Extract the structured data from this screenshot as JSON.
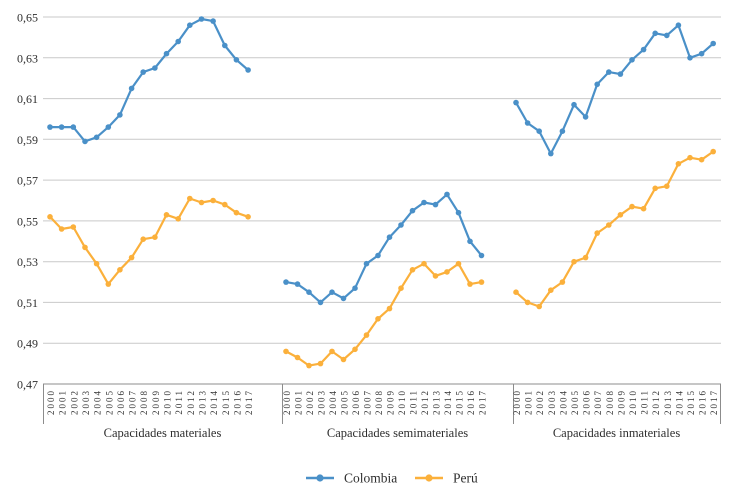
{
  "chart_data": {
    "type": "line",
    "title": "",
    "y_axis": {
      "min": 0.47,
      "max": 0.65,
      "step": 0.02,
      "tick_labels": [
        "0,65",
        "0,63",
        "0,61",
        "0,59",
        "0,57",
        "0,55",
        "0,53",
        "0,51",
        "0,49",
        "0,47"
      ]
    },
    "years": [
      "2000",
      "2001",
      "2002",
      "2003",
      "2004",
      "2005",
      "2006",
      "2007",
      "2008",
      "2009",
      "2010",
      "2011",
      "2012",
      "2013",
      "2014",
      "2015",
      "2016",
      "2017"
    ],
    "panels": [
      {
        "title": "Capacidades materiales",
        "series": [
          {
            "name": "Colombia",
            "values": [
              0.596,
              0.596,
              0.596,
              0.589,
              0.591,
              0.596,
              0.602,
              0.615,
              0.623,
              0.625,
              0.632,
              0.638,
              0.646,
              0.649,
              0.648,
              0.636,
              0.629,
              0.624
            ]
          },
          {
            "name": "Perú",
            "values": [
              0.552,
              0.546,
              0.547,
              0.537,
              0.529,
              0.519,
              0.526,
              0.532,
              0.541,
              0.542,
              0.553,
              0.551,
              0.561,
              0.559,
              0.56,
              0.558,
              0.554,
              0.552
            ]
          }
        ]
      },
      {
        "title": "Capacidades semimateriales",
        "series": [
          {
            "name": "Colombia",
            "values": [
              0.52,
              0.519,
              0.515,
              0.51,
              0.515,
              0.512,
              0.517,
              0.529,
              0.533,
              0.542,
              0.548,
              0.555,
              0.559,
              0.558,
              0.563,
              0.554,
              0.54,
              0.533
            ]
          },
          {
            "name": "Perú",
            "values": [
              0.486,
              0.483,
              0.479,
              0.48,
              0.486,
              0.482,
              0.487,
              0.494,
              0.502,
              0.507,
              0.517,
              0.526,
              0.529,
              0.523,
              0.525,
              0.529,
              0.519,
              0.52
            ]
          }
        ]
      },
      {
        "title": "Capacidades inmateriales",
        "series": [
          {
            "name": "Colombia",
            "values": [
              0.608,
              0.598,
              0.594,
              0.583,
              0.594,
              0.607,
              0.601,
              0.617,
              0.623,
              0.622,
              0.629,
              0.634,
              0.642,
              0.641,
              0.646,
              0.63,
              0.632,
              0.637
            ]
          },
          {
            "name": "Perú",
            "values": [
              0.515,
              0.51,
              0.508,
              0.516,
              0.52,
              0.53,
              0.532,
              0.544,
              0.548,
              0.553,
              0.557,
              0.556,
              0.566,
              0.567,
              0.578,
              0.581,
              0.58,
              0.584
            ]
          }
        ]
      }
    ],
    "legend": [
      {
        "label": "Colombia",
        "color": "#4A90C8"
      },
      {
        "label": "Perú",
        "color": "#FBB03B"
      }
    ],
    "layout_hints": {
      "grid": "horizontal-only",
      "legend_position": "bottom-center",
      "x_tick_rotation": -90
    },
    "style": {
      "grid_color": "#C9C9C9",
      "axis_color": "#8C8C8C",
      "text_color": "#2E2E2E",
      "year_label_color": "#333333",
      "background": "#FFFFFF"
    }
  }
}
